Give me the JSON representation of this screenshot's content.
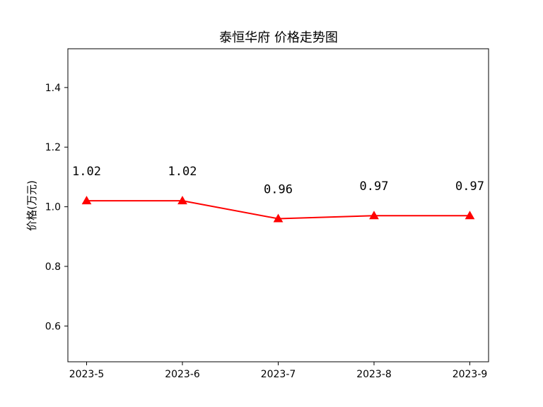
{
  "chart_data": {
    "type": "line",
    "title": "泰恒华府 价格走势图",
    "xlabel": "",
    "ylabel": "价格(万元)",
    "categories": [
      "2023-5",
      "2023-6",
      "2023-7",
      "2023-8",
      "2023-9"
    ],
    "series": [
      {
        "values": [
          1.02,
          1.02,
          0.96,
          0.97,
          0.97
        ],
        "color": "#ff0000",
        "marker": "triangle",
        "data_labels": [
          "1.02",
          "1.02",
          "0.96",
          "0.97",
          "0.97"
        ]
      }
    ],
    "ylim": [
      0.48,
      1.53
    ],
    "yticks": [
      0.6,
      0.8,
      1.0,
      1.2,
      1.4
    ],
    "ytick_labels": [
      "0.6",
      "0.8",
      "1.0",
      "1.2",
      "1.4"
    ],
    "grid": false,
    "legend": "none"
  }
}
